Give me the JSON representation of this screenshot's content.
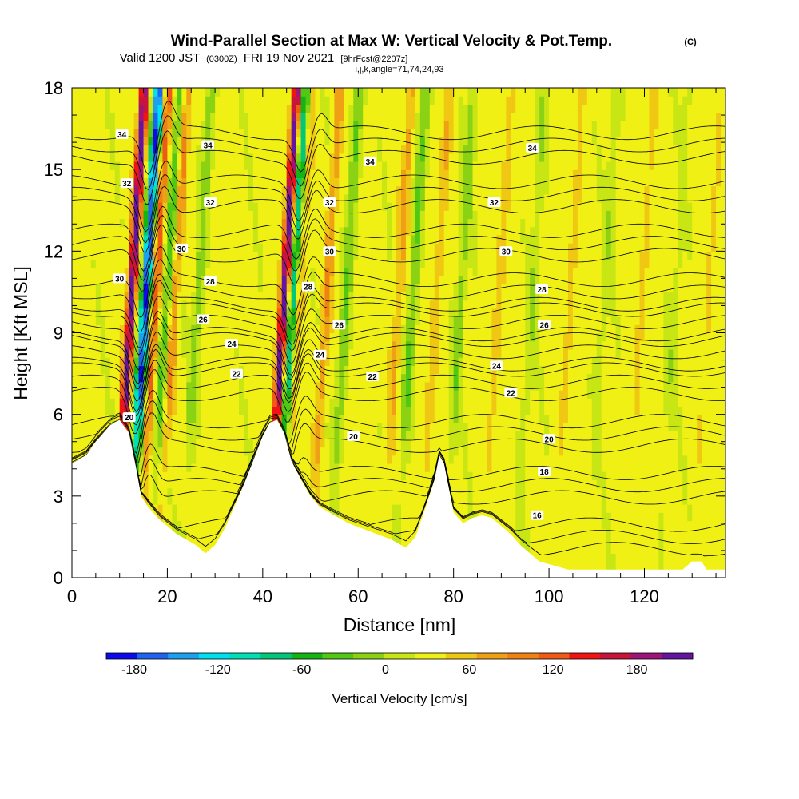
{
  "chart_data": {
    "type": "heatmap",
    "title": {
      "main": "Wind-Parallel Section at Max W: Vertical Velocity & Pot.Temp.",
      "copyright": "(C)",
      "valid_prefix": "Valid 1200 JST",
      "valid_utc": "(0300Z)",
      "valid_date": "FRI 19 Nov 2021",
      "forecast": "[9hrFcst@2207z]",
      "indices": "i,j,k,angle=71,74,24,93"
    },
    "xlabel": "Distance [nm]",
    "ylabel": "Height [Kft MSL]",
    "xlim": [
      0,
      137
    ],
    "ylim": [
      0,
      18
    ],
    "x_ticks": [
      0,
      20,
      40,
      60,
      80,
      100,
      120
    ],
    "y_ticks": [
      0,
      3,
      6,
      9,
      12,
      15,
      18
    ],
    "colorbar": {
      "label": "Vertical Velocity [cm/s]",
      "ticks": [
        -180,
        -120,
        -60,
        0,
        60,
        120,
        180
      ],
      "range": [
        -200,
        220
      ],
      "step": 20,
      "colors": [
        "#0a0af0",
        "#1e64f0",
        "#1ea0f0",
        "#00e0f0",
        "#00e0b4",
        "#00c878",
        "#14b414",
        "#50c814",
        "#8cd214",
        "#c8e614",
        "#f0f014",
        "#f0c814",
        "#f0a014",
        "#f08214",
        "#f05a14",
        "#f01414",
        "#c8143c",
        "#a01478",
        "#6414a0"
      ]
    },
    "terrain": [
      [
        0,
        4.2
      ],
      [
        3,
        4.5
      ],
      [
        5,
        5.0
      ],
      [
        8,
        5.6
      ],
      [
        10,
        5.8
      ],
      [
        12,
        5.3
      ],
      [
        13.5,
        4.0
      ],
      [
        14.5,
        3.0
      ],
      [
        16,
        2.6
      ],
      [
        18,
        2.2
      ],
      [
        20,
        1.9
      ],
      [
        22,
        1.6
      ],
      [
        24,
        1.4
      ],
      [
        26,
        1.2
      ],
      [
        28,
        0.9
      ],
      [
        30,
        1.2
      ],
      [
        32,
        1.8
      ],
      [
        34,
        2.6
      ],
      [
        36,
        3.4
      ],
      [
        38,
        4.3
      ],
      [
        40,
        5.2
      ],
      [
        41.5,
        5.7
      ],
      [
        43,
        5.8
      ],
      [
        44.5,
        5.3
      ],
      [
        46,
        4.3
      ],
      [
        48,
        3.6
      ],
      [
        50,
        3.0
      ],
      [
        52,
        2.6
      ],
      [
        55,
        2.3
      ],
      [
        58,
        2.0
      ],
      [
        61,
        1.8
      ],
      [
        64,
        1.6
      ],
      [
        67,
        1.4
      ],
      [
        70,
        1.1
      ],
      [
        72,
        1.5
      ],
      [
        74,
        2.5
      ],
      [
        76,
        3.6
      ],
      [
        77,
        4.5
      ],
      [
        78,
        4.2
      ],
      [
        79,
        3.3
      ],
      [
        80,
        2.4
      ],
      [
        82,
        2.0
      ],
      [
        84,
        2.2
      ],
      [
        86,
        2.3
      ],
      [
        88,
        2.2
      ],
      [
        90,
        1.9
      ],
      [
        92,
        1.6
      ],
      [
        94,
        1.2
      ],
      [
        96,
        0.9
      ],
      [
        98,
        0.6
      ],
      [
        100,
        0.5
      ],
      [
        102,
        0.4
      ],
      [
        104,
        0.3
      ],
      [
        108,
        0.3
      ],
      [
        112,
        0.3
      ],
      [
        118,
        0.3
      ],
      [
        124,
        0.3
      ],
      [
        128,
        0.3
      ],
      [
        130,
        0.6
      ],
      [
        132,
        0.6
      ],
      [
        133,
        0.3
      ],
      [
        137,
        0.3
      ]
    ],
    "updrafts": [
      {
        "x": 11,
        "amp": 170
      },
      {
        "x": 16,
        "amp": 90
      },
      {
        "x": 20,
        "amp": 60
      },
      {
        "x": 43,
        "amp": 170
      },
      {
        "x": 46,
        "amp": 60
      },
      {
        "x": 52,
        "amp": 50
      },
      {
        "x": 67,
        "amp": 40
      },
      {
        "x": 75,
        "amp": 30
      },
      {
        "x": 88,
        "amp": 25
      },
      {
        "x": 103,
        "amp": 20
      },
      {
        "x": 118,
        "amp": 18
      },
      {
        "x": 132,
        "amp": 15
      }
    ],
    "downdrafts": [
      {
        "x": 14,
        "amp": 190
      },
      {
        "x": 18.5,
        "amp": 60
      },
      {
        "x": 25,
        "amp": 40
      },
      {
        "x": 45,
        "amp": 120
      },
      {
        "x": 56,
        "amp": 50
      },
      {
        "x": 70,
        "amp": 50
      },
      {
        "x": 80,
        "amp": 40
      },
      {
        "x": 95,
        "amp": 25
      },
      {
        "x": 110,
        "amp": 22
      },
      {
        "x": 125,
        "amp": 20
      }
    ],
    "theta_levels": [
      16,
      18,
      20,
      22,
      24,
      26,
      28,
      30,
      32,
      34
    ],
    "theta_labels": [
      {
        "text": "34",
        "x": 10.5,
        "y": 16.3
      },
      {
        "text": "32",
        "x": 11.5,
        "y": 14.5
      },
      {
        "text": "30",
        "x": 10.0,
        "y": 11.0
      },
      {
        "text": "20",
        "x": 12.0,
        "y": 5.9
      },
      {
        "text": "34",
        "x": 28.5,
        "y": 15.9
      },
      {
        "text": "32",
        "x": 29.0,
        "y": 13.8
      },
      {
        "text": "30",
        "x": 23.0,
        "y": 12.1
      },
      {
        "text": "28",
        "x": 29.0,
        "y": 10.9
      },
      {
        "text": "26",
        "x": 27.5,
        "y": 9.5
      },
      {
        "text": "24",
        "x": 33.5,
        "y": 8.6
      },
      {
        "text": "22",
        "x": 34.5,
        "y": 7.5
      },
      {
        "text": "34",
        "x": 62.5,
        "y": 15.3
      },
      {
        "text": "32",
        "x": 54.0,
        "y": 13.8
      },
      {
        "text": "30",
        "x": 54.0,
        "y": 12.0
      },
      {
        "text": "28",
        "x": 49.5,
        "y": 10.7
      },
      {
        "text": "26",
        "x": 56.0,
        "y": 9.3
      },
      {
        "text": "24",
        "x": 52.0,
        "y": 8.2
      },
      {
        "text": "22",
        "x": 63.0,
        "y": 7.4
      },
      {
        "text": "20",
        "x": 59.0,
        "y": 5.2
      },
      {
        "text": "34",
        "x": 96.5,
        "y": 15.8
      },
      {
        "text": "32",
        "x": 88.5,
        "y": 13.8
      },
      {
        "text": "30",
        "x": 91.0,
        "y": 12.0
      },
      {
        "text": "28",
        "x": 98.5,
        "y": 10.6
      },
      {
        "text": "26",
        "x": 99.0,
        "y": 9.3
      },
      {
        "text": "24",
        "x": 89.0,
        "y": 7.8
      },
      {
        "text": "22",
        "x": 92.0,
        "y": 6.8
      },
      {
        "text": "20",
        "x": 100.0,
        "y": 5.1
      },
      {
        "text": "18",
        "x": 99.0,
        "y": 3.9
      },
      {
        "text": "16",
        "x": 97.5,
        "y": 2.3
      }
    ]
  }
}
